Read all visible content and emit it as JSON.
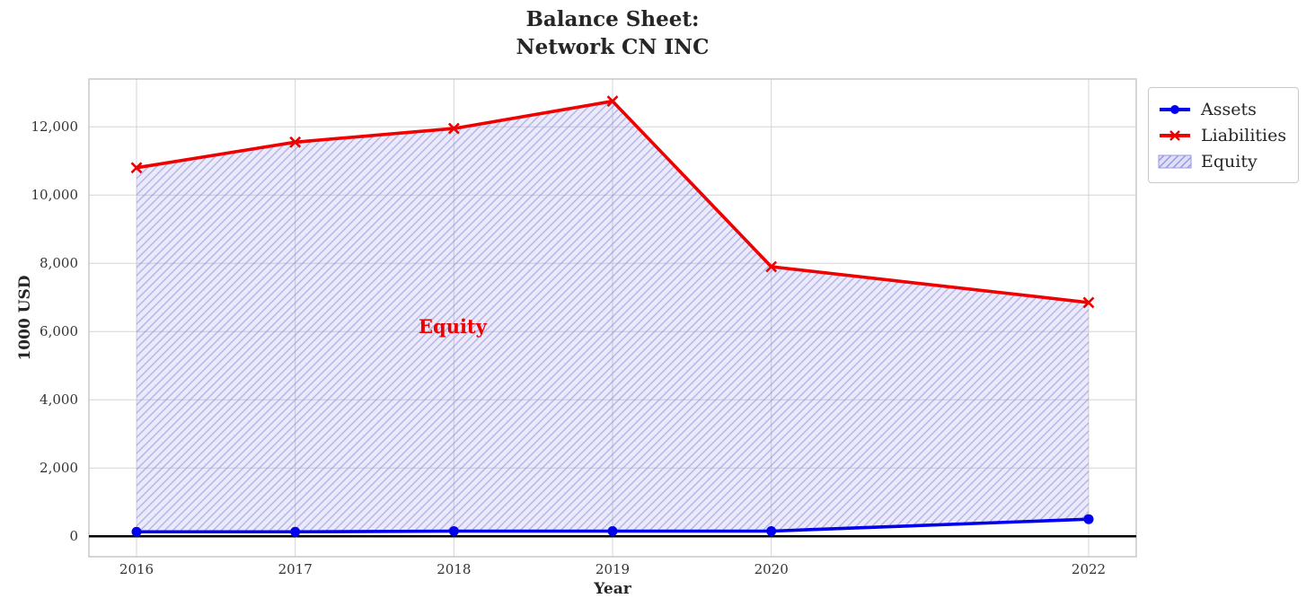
{
  "chart_data": {
    "type": "area",
    "title_lines": [
      "Balance Sheet:",
      "Network CN INC"
    ],
    "xlabel": "Year",
    "ylabel": "1000 USD",
    "x": [
      2016,
      2017,
      2018,
      2019,
      2020,
      2022
    ],
    "series": [
      {
        "name": "Assets",
        "color": "#0000ee",
        "marker": "circle",
        "values": [
          130,
          130,
          150,
          150,
          150,
          500
        ]
      },
      {
        "name": "Liabilities",
        "color": "#ee0000",
        "marker": "x",
        "values": [
          10800,
          11550,
          11950,
          12750,
          7900,
          6850
        ]
      }
    ],
    "area": {
      "name": "Equity",
      "between": [
        "Assets",
        "Liabilities"
      ],
      "fill_color": "#8c8ce6",
      "fill_opacity": 0.18,
      "hatch": "/",
      "hatch_color": "#7d7dd8",
      "hatch_opacity": 0.5
    },
    "annotation": {
      "text": "Equity",
      "color": "#ee0000",
      "x": 2018,
      "y": 6000
    },
    "xticks": [
      2016,
      2017,
      2018,
      2019,
      2020,
      2022
    ],
    "yticks": [
      0,
      2000,
      4000,
      6000,
      8000,
      10000,
      12000
    ],
    "ytick_labels": [
      "0",
      "2,000",
      "4,000",
      "6,000",
      "8,000",
      "10,000",
      "12,000"
    ],
    "xlim": [
      2015.7,
      2022.3
    ],
    "ylim": [
      -600,
      13400
    ],
    "grid": true,
    "grid_color": "#d4d4d4",
    "border_color": "#c8c8c8",
    "zero_line_color": "#000000",
    "tick_color": "#333333",
    "legend_position": "outside-top-right",
    "legend": [
      {
        "label": "Assets"
      },
      {
        "label": "Liabilities"
      },
      {
        "label": "Equity"
      }
    ]
  }
}
